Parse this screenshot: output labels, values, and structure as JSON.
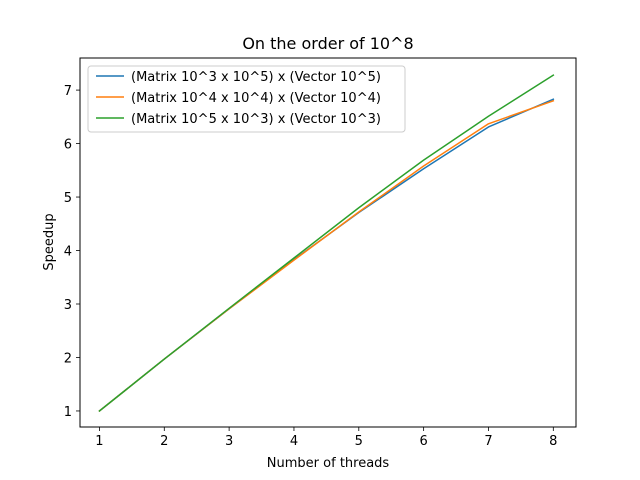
{
  "chart_data": {
    "type": "line",
    "title": "On the order of 10^8",
    "xlabel": "Number of threads",
    "ylabel": "Speedup",
    "x": [
      1,
      2,
      3,
      4,
      5,
      6,
      7,
      8
    ],
    "xlim": [
      0.7,
      8.35
    ],
    "ylim": [
      0.7,
      7.6
    ],
    "xticks": [
      1,
      2,
      3,
      4,
      5,
      6,
      7,
      8
    ],
    "yticks": [
      1,
      2,
      3,
      4,
      5,
      6,
      7
    ],
    "grid": false,
    "legend_position": "upper-left",
    "series": [
      {
        "name": "(Matrix 10^3 x 10^5) x (Vector 10^5)",
        "color": "#1f77b4",
        "values": [
          1.0,
          1.97,
          2.91,
          3.83,
          4.71,
          5.53,
          6.31,
          6.83
        ]
      },
      {
        "name": "(Matrix 10^4 x 10^4) x (Vector 10^4)",
        "color": "#ff7f0e",
        "values": [
          1.0,
          1.97,
          2.91,
          3.82,
          4.72,
          5.58,
          6.37,
          6.8
        ]
      },
      {
        "name": "(Matrix 10^5 x 10^3) x (Vector 10^3)",
        "color": "#2ca02c",
        "values": [
          1.0,
          1.97,
          2.92,
          3.86,
          4.8,
          5.69,
          6.51,
          7.28
        ]
      }
    ]
  }
}
